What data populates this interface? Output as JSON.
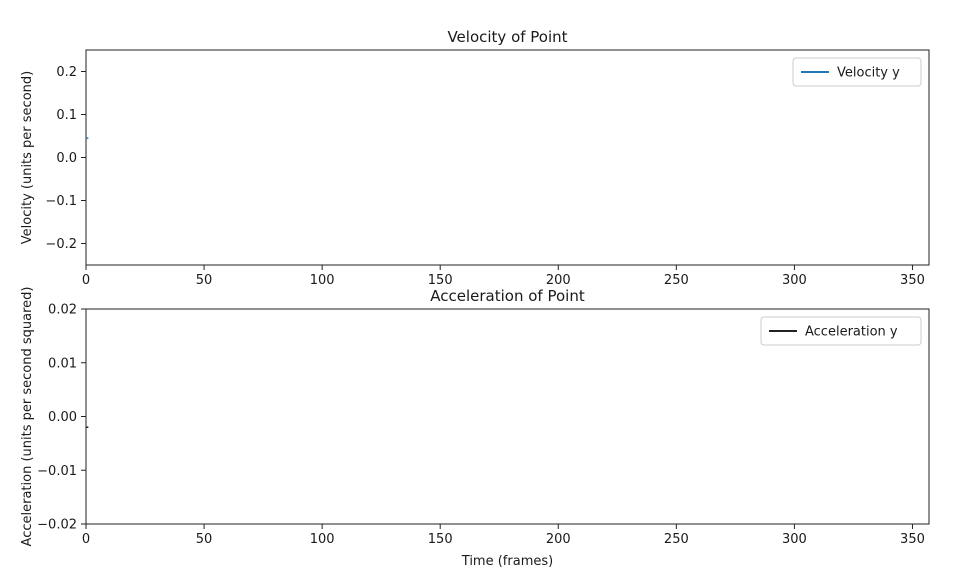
{
  "chart_data": [
    {
      "type": "line",
      "title": "Velocity of Point",
      "xlabel": "",
      "ylabel": "Velocity (units per second)",
      "xlim": [
        0,
        357
      ],
      "ylim": [
        -0.25,
        0.25
      ],
      "x_ticks": [
        0,
        50,
        100,
        150,
        200,
        250,
        300,
        350
      ],
      "y_ticks": [
        0.2,
        0.1,
        0.0,
        -0.1,
        -0.2
      ],
      "y_tick_labels": [
        "0.2",
        "0.1",
        "0.0",
        "−0.1",
        "−0.2"
      ],
      "grid": false,
      "legend_position": "top-right",
      "series": [
        {
          "name": "Velocity y",
          "color": "#1f77b4",
          "x": [
            0,
            1
          ],
          "y": [
            0.045,
            0.045
          ]
        }
      ]
    },
    {
      "type": "line",
      "title": "Acceleration of Point",
      "xlabel": "Time (frames)",
      "ylabel": "Acceleration (units per second squared)",
      "xlim": [
        0,
        357
      ],
      "ylim": [
        -0.02,
        0.02
      ],
      "x_ticks": [
        0,
        50,
        100,
        150,
        200,
        250,
        300,
        350
      ],
      "y_ticks": [
        0.02,
        0.01,
        0.0,
        -0.01,
        -0.02
      ],
      "y_tick_labels": [
        "0.02",
        "0.01",
        "0.00",
        "−0.01",
        "−0.02"
      ],
      "grid": false,
      "legend_position": "top-right",
      "series": [
        {
          "name": "Acceleration y",
          "color": "#222222",
          "x": [
            0,
            1
          ],
          "y": [
            -0.002,
            -0.002
          ]
        }
      ]
    }
  ]
}
